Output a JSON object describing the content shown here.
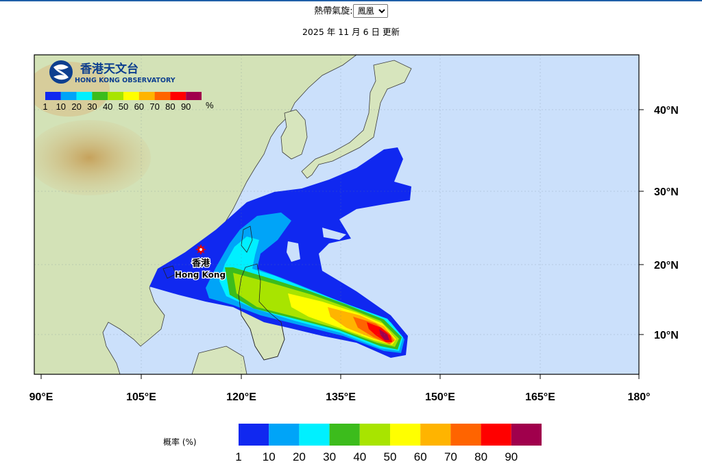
{
  "selector": {
    "label": "熱帶氣旋:",
    "selected": "鳳凰",
    "options": [
      "鳳凰"
    ]
  },
  "update_text": "2025 年 11 月 6 日 更新",
  "logo": {
    "name_zh": "香港天文台",
    "name_en": "HONG KONG OBSERVATORY"
  },
  "inset_legend": {
    "unit": "%",
    "labels": [
      "1",
      "10",
      "20",
      "30",
      "40",
      "50",
      "60",
      "70",
      "80",
      "90"
    ]
  },
  "bottom_legend": {
    "title": "概率 (%)",
    "labels": [
      "1",
      "10",
      "20",
      "30",
      "40",
      "50",
      "60",
      "70",
      "80",
      "90"
    ]
  },
  "colors": {
    "p1": "#1028f0",
    "p10": "#00a4f8",
    "p20": "#00f0ff",
    "p30": "#3cbc1c",
    "p40": "#a8e400",
    "p50": "#ffff00",
    "p60": "#ffb400",
    "p70": "#ff6400",
    "p80": "#ff0000",
    "p90": "#a0004c",
    "ocean": "#cbe0fb",
    "land": "#cfe0b6"
  },
  "map": {
    "x_ticks": [
      "90°E",
      "105°E",
      "120°E",
      "135°E",
      "150°E",
      "165°E",
      "180°"
    ],
    "y_ticks": [
      "40°N",
      "30°N",
      "20°N",
      "10°N"
    ],
    "city_label_zh": "香港",
    "city_label_en": "Hong Kong",
    "marker_icon": "red-star-icon"
  }
}
